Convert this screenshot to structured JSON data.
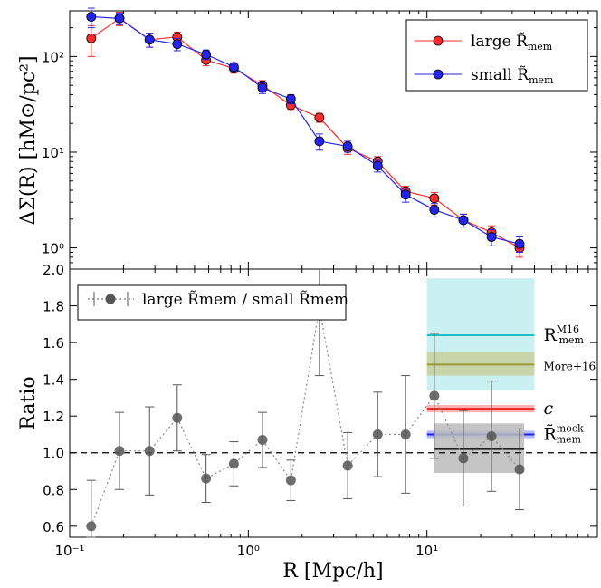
{
  "chart_data": [
    {
      "type": "line",
      "panel": "top",
      "xscale": "log",
      "yscale": "log",
      "xlim": [
        0.1,
        90
      ],
      "ylim": [
        0.6,
        300
      ],
      "ylabel": "ΔΣ(R) [hM⊙/pc²]",
      "yticklabels": [
        "10⁰",
        "10¹",
        "10²"
      ],
      "series": [
        {
          "name": "large R̃mem",
          "legend": "large R̃",
          "legend_sub": "mem",
          "color": "#ff2a2a",
          "x": [
            0.132,
            0.19,
            0.28,
            0.4,
            0.58,
            0.83,
            1.2,
            1.73,
            2.5,
            3.6,
            5.3,
            7.6,
            11.0,
            16.0,
            23.0,
            33.0
          ],
          "y": [
            155,
            250,
            150,
            160,
            92,
            75,
            50,
            31,
            23,
            11,
            8,
            3.9,
            3.3,
            1.95,
            1.45,
            1.0
          ],
          "err": [
            55,
            40,
            25,
            20,
            12,
            8,
            6,
            3,
            2.5,
            1.5,
            1,
            0.5,
            0.5,
            0.3,
            0.25,
            0.2
          ]
        },
        {
          "name": "small R̃mem",
          "legend": "small R̃",
          "legend_sub": "mem",
          "color": "#2424ee",
          "x": [
            0.132,
            0.19,
            0.28,
            0.4,
            0.58,
            0.83,
            1.2,
            1.73,
            2.5,
            3.6,
            5.3,
            7.6,
            11.0,
            16.0,
            23.0,
            33.0
          ],
          "y": [
            260,
            250,
            150,
            135,
            105,
            78,
            47,
            36,
            13,
            11.5,
            7.2,
            3.6,
            2.5,
            1.95,
            1.3,
            1.1
          ],
          "err": [
            60,
            35,
            25,
            20,
            12,
            8,
            6,
            4,
            2.5,
            1.5,
            1,
            0.6,
            0.4,
            0.3,
            0.25,
            0.2
          ]
        }
      ]
    },
    {
      "type": "line",
      "panel": "bottom",
      "xscale": "log",
      "xlim": [
        0.1,
        90
      ],
      "ylim": [
        0.54,
        2.0
      ],
      "xlabel": "R [Mpc/h]",
      "ylabel": "Ratio",
      "xticklabels": [
        "10⁻¹",
        "10⁰",
        "10¹"
      ],
      "yticklabels": [
        "0.6",
        "0.8",
        "1.0",
        "1.2",
        "1.4",
        "1.6",
        "1.8",
        "2.0"
      ],
      "series": [
        {
          "name": "large R̃mem / small R̃mem",
          "color": "#555555",
          "x": [
            0.132,
            0.19,
            0.28,
            0.4,
            0.58,
            0.83,
            1.2,
            1.73,
            2.5,
            3.6,
            5.3,
            7.6,
            11.0,
            16.0,
            23.0,
            33.0
          ],
          "y": [
            0.6,
            1.01,
            1.01,
            1.19,
            0.86,
            0.94,
            1.07,
            0.85,
            1.79,
            0.93,
            1.1,
            1.1,
            1.31,
            0.97,
            1.09,
            0.91
          ],
          "err": [
            0.25,
            0.21,
            0.24,
            0.18,
            0.13,
            0.12,
            0.15,
            0.11,
            0.37,
            0.18,
            0.23,
            0.32,
            0.34,
            0.26,
            0.3,
            0.22
          ]
        }
      ],
      "reference_line": 1.0,
      "bands": [
        {
          "label": "R",
          "label_sup": "M16",
          "label_sub": "mem",
          "value": 1.64,
          "lo": 1.34,
          "hi": 1.95,
          "color": "#1fbfbf",
          "fill": "#bfeeee",
          "x_range": [
            10,
            40
          ]
        },
        {
          "label": "More+16",
          "value": 1.48,
          "lo": 1.42,
          "hi": 1.55,
          "color": "#9a9a3a",
          "fill": "#c8d2a0",
          "x_range": [
            10,
            40
          ]
        },
        {
          "label": "c",
          "value": 1.24,
          "lo": 1.22,
          "hi": 1.26,
          "color": "#ee2222",
          "fill": "#ffaaaa",
          "x_range": [
            10,
            40
          ]
        },
        {
          "label": "R̃",
          "label_sup": "mock",
          "label_sub": "mem",
          "value": 1.1,
          "lo": 1.08,
          "hi": 1.12,
          "color": "#2020ee",
          "fill": "#aab0ff",
          "x_range": [
            10,
            40
          ]
        },
        {
          "label": "",
          "value": 1.02,
          "lo": 0.89,
          "hi": 1.16,
          "color": "#222222",
          "fill": "#bbbbbb",
          "x_range": [
            11,
            35
          ]
        }
      ]
    }
  ]
}
